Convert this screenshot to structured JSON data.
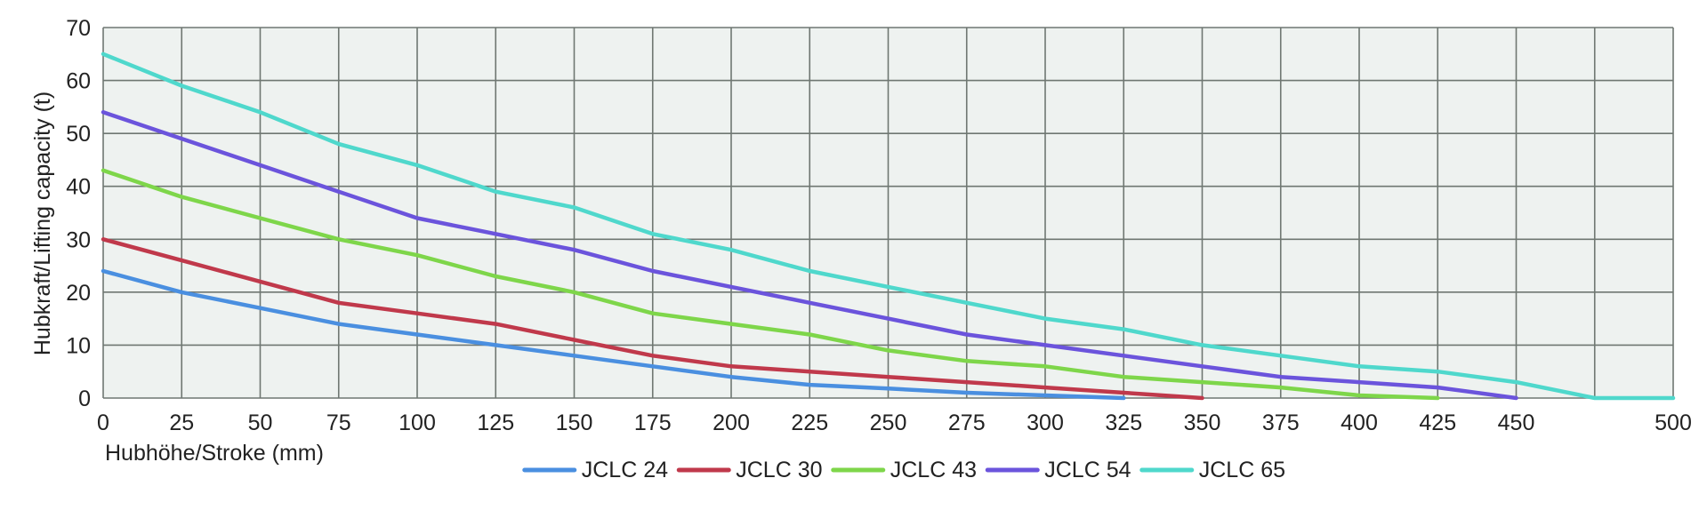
{
  "chart_data": {
    "type": "line",
    "title": "",
    "xlabel": "Hubhöhe/Stroke (mm)",
    "ylabel": "Hubkraft/Lifting capacity (t)",
    "xlim": [
      0,
      500
    ],
    "ylim": [
      0,
      70
    ],
    "x_ticks": [
      0,
      25,
      50,
      75,
      100,
      125,
      150,
      175,
      200,
      225,
      250,
      275,
      300,
      325,
      350,
      375,
      400,
      425,
      450,
      475,
      500
    ],
    "x_tick_labels": [
      "0",
      "25",
      "50",
      "75",
      "100",
      "125",
      "150",
      "175",
      "200",
      "225",
      "250",
      "275",
      "300",
      "325",
      "350",
      "375",
      "400",
      "425",
      "450",
      "",
      "500"
    ],
    "y_ticks": [
      0,
      10,
      20,
      30,
      40,
      50,
      60,
      70
    ],
    "grid": true,
    "legend_position": "bottom-center",
    "colors": {
      "plot_background": "#eef2f0",
      "grid": "#6f7772",
      "text": "#222222"
    },
    "series": [
      {
        "name": "JCLC 24",
        "color": "#4a8fe0",
        "x": [
          0,
          25,
          50,
          75,
          100,
          125,
          150,
          175,
          200,
          225,
          250,
          275,
          300,
          325
        ],
        "y": [
          24,
          20,
          17,
          14,
          12,
          10,
          8,
          6,
          4,
          2.5,
          1.8,
          1,
          0.5,
          0
        ]
      },
      {
        "name": "JCLC 30",
        "color": "#c0394b",
        "x": [
          0,
          25,
          50,
          75,
          100,
          125,
          150,
          175,
          200,
          225,
          250,
          275,
          300,
          325,
          350
        ],
        "y": [
          30,
          26,
          22,
          18,
          16,
          14,
          11,
          8,
          6,
          5,
          4,
          3,
          2,
          1,
          0
        ]
      },
      {
        "name": "JCLC 43",
        "color": "#7ed64a",
        "x": [
          0,
          25,
          50,
          75,
          100,
          125,
          150,
          175,
          200,
          225,
          250,
          275,
          300,
          325,
          350,
          375,
          400,
          425
        ],
        "y": [
          43,
          38,
          34,
          30,
          27,
          23,
          20,
          16,
          14,
          12,
          9,
          7,
          6,
          4,
          3,
          2,
          0.5,
          0
        ]
      },
      {
        "name": "JCLC 54",
        "color": "#6b54dc",
        "x": [
          0,
          25,
          50,
          75,
          100,
          125,
          150,
          175,
          200,
          225,
          250,
          275,
          300,
          325,
          350,
          375,
          400,
          425,
          450
        ],
        "y": [
          54,
          49,
          44,
          39,
          34,
          31,
          28,
          24,
          21,
          18,
          15,
          12,
          10,
          8,
          6,
          4,
          3,
          2,
          0
        ]
      },
      {
        "name": "JCLC 65",
        "color": "#4fd8cc",
        "x": [
          0,
          25,
          50,
          75,
          100,
          125,
          150,
          175,
          200,
          225,
          250,
          275,
          300,
          325,
          350,
          375,
          400,
          425,
          450,
          475,
          500
        ],
        "y": [
          65,
          59,
          54,
          48,
          44,
          39,
          36,
          31,
          28,
          24,
          21,
          18,
          15,
          13,
          10,
          8,
          6,
          5,
          3,
          0,
          0
        ]
      }
    ]
  }
}
